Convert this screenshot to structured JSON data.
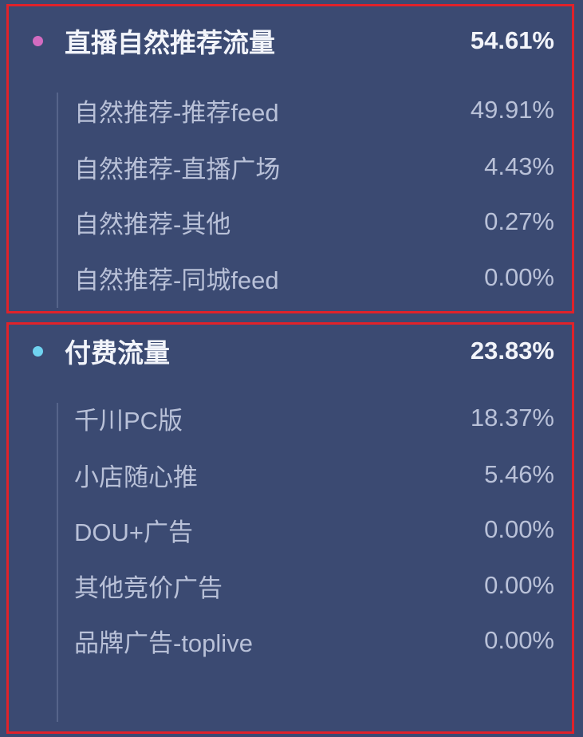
{
  "sections": [
    {
      "title": "直播自然推荐流量",
      "value": "54.61%",
      "dot_color": "#d36bc0",
      "items": [
        {
          "label": "自然推荐-推荐feed",
          "value": "49.91%"
        },
        {
          "label": "自然推荐-直播广场",
          "value": "4.43%"
        },
        {
          "label": "自然推荐-其他",
          "value": "0.27%"
        },
        {
          "label": "自然推荐-同城feed",
          "value": "0.00%"
        }
      ]
    },
    {
      "title": "付费流量",
      "value": "23.83%",
      "dot_color": "#6fd3f0",
      "items": [
        {
          "label": "千川PC版",
          "value": "18.37%"
        },
        {
          "label": "小店随心推",
          "value": "5.46%"
        },
        {
          "label": "DOU+广告",
          "value": "0.00%"
        },
        {
          "label": "其他竞价广告",
          "value": "0.00%"
        },
        {
          "label": "品牌广告-toplive",
          "value": "0.00%"
        }
      ]
    }
  ],
  "colors": {
    "background": "#3b4a72",
    "highlight_border": "#e0222a"
  }
}
